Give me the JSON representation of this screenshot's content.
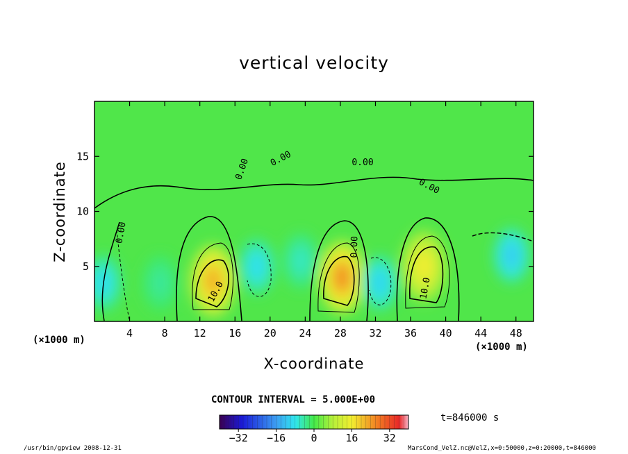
{
  "chart_data": {
    "type": "heatmap",
    "title": "vertical velocity",
    "xlabel": "X-coordinate",
    "ylabel": "Z-coordinate",
    "x_unit": "(×1000 m)",
    "y_unit": "(×1000 m)",
    "xlim": [
      0,
      50
    ],
    "ylim": [
      0,
      20
    ],
    "x_ticks": [
      4,
      8,
      12,
      16,
      20,
      24,
      28,
      32,
      36,
      40,
      44,
      48
    ],
    "y_ticks": [
      5,
      10,
      15
    ],
    "contour_interval_text": "CONTOUR INTERVAL = 5.000E+00",
    "contour_labels": [
      "0.00",
      "10.0"
    ],
    "colorbar": {
      "min": -40,
      "max": 40,
      "ticks": [
        -32,
        -16,
        0,
        16,
        32
      ]
    },
    "features": [
      {
        "x": 13.5,
        "z": 3.7,
        "value": 22
      },
      {
        "x": 28.2,
        "z": 4.0,
        "value": 25
      },
      {
        "x": 37.5,
        "z": 5.0,
        "value": 16
      },
      {
        "x": 18.5,
        "z": 5.0,
        "value": -9
      },
      {
        "x": 32.5,
        "z": 3.5,
        "value": -10
      },
      {
        "x": 47.5,
        "z": 6.0,
        "value": -11
      },
      {
        "x": 1.0,
        "z": 3.5,
        "value": -9
      },
      {
        "x": 7.5,
        "z": 3.5,
        "value": -4
      },
      {
        "x": 23.5,
        "z": 5.5,
        "value": -6
      }
    ],
    "time_label": "t=846000 s"
  },
  "footer": {
    "left": "/usr/bin/gpview   2008-12-31",
    "right": "MarsCond_VelZ.nc@VelZ,x=0:50000,z=0:20000,t=846000"
  }
}
